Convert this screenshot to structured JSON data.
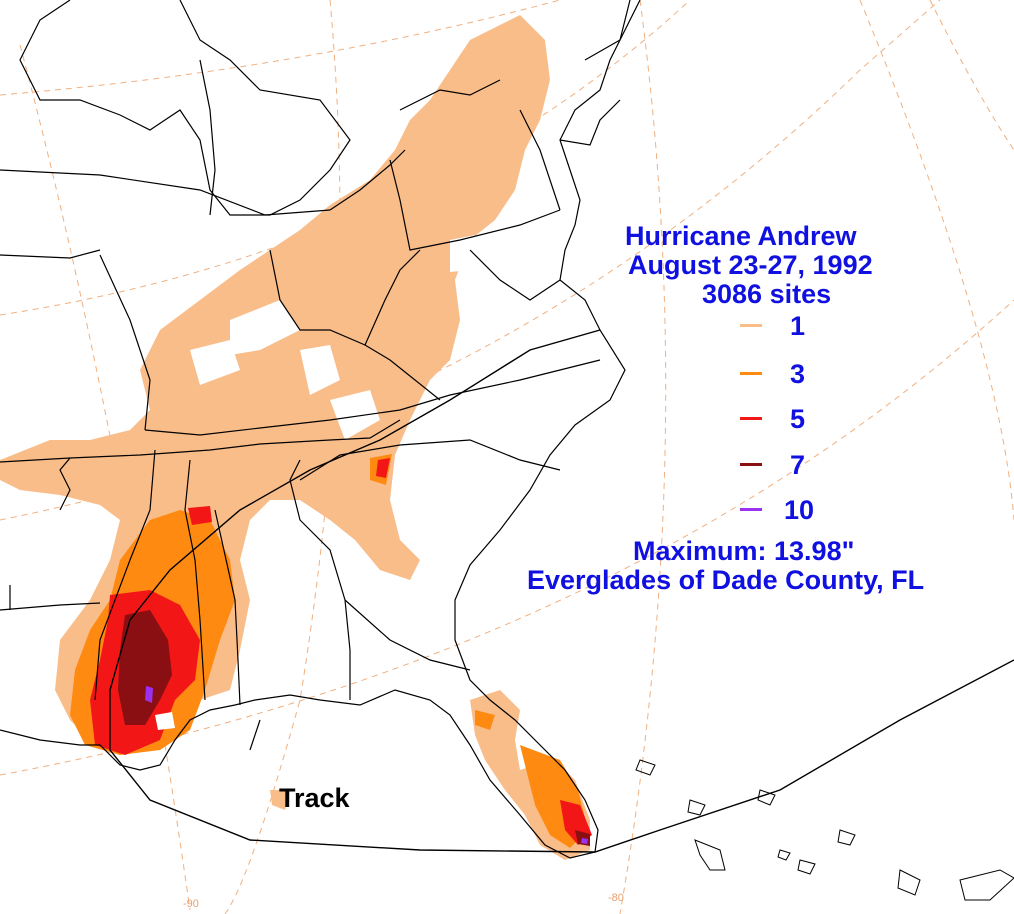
{
  "title": {
    "line1": "Hurricane Andrew",
    "line2": "August 23-27, 1992",
    "line3": "3086 sites"
  },
  "legend": [
    {
      "value": "1",
      "color": "#f9bd8a"
    },
    {
      "value": "3",
      "color": "#ff8a12"
    },
    {
      "value": "5",
      "color": "#f21616"
    },
    {
      "value": "7",
      "color": "#8a0f12"
    },
    {
      "value": "10",
      "color": "#9a30f0"
    }
  ],
  "maximum": {
    "label": "Maximum:  13.98\"",
    "location": "Everglades of Dade County, FL"
  },
  "track_label": "Track",
  "lon_labels": [
    "-90",
    "-80"
  ],
  "colors": {
    "text": "#1010e0",
    "graticule": "#f0b080",
    "boundary": "#000000",
    "background": "#ffffff"
  }
}
